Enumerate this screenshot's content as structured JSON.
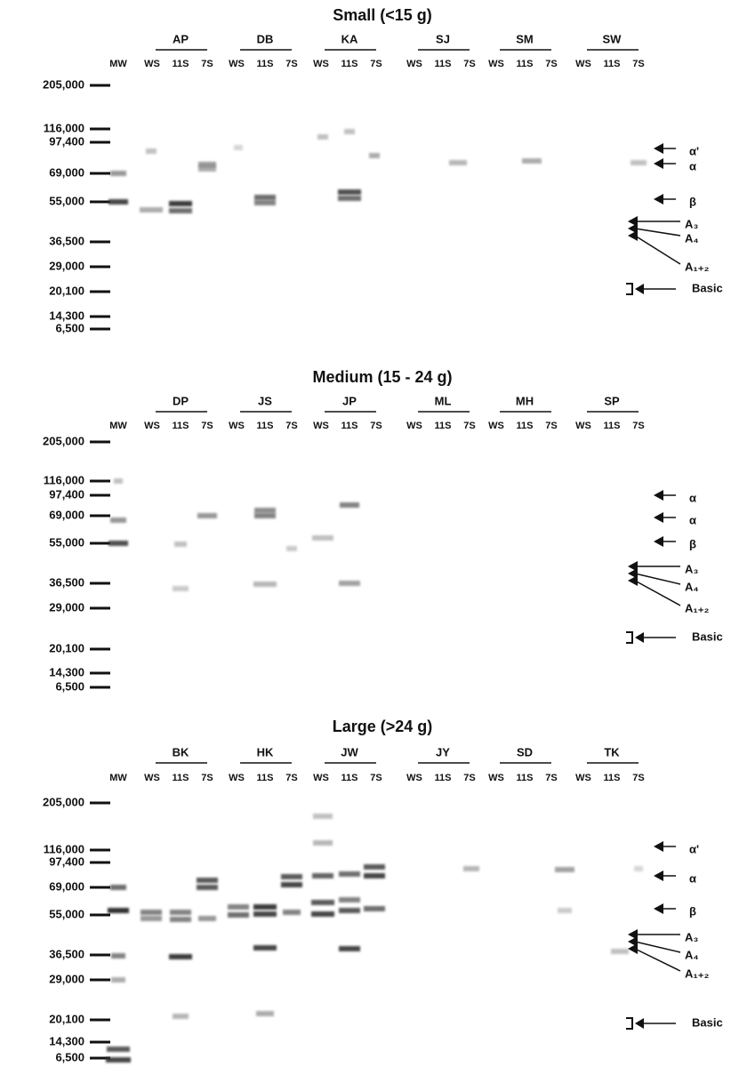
{
  "panels": [
    {
      "title": "Small (<15 g)",
      "mw": "MW",
      "groups": [
        {
          "name": "AP",
          "lanes": [
            "WS",
            "11S",
            "7S"
          ]
        },
        {
          "name": "DB",
          "lanes": [
            "WS",
            "11S",
            "7S"
          ]
        },
        {
          "name": "KA",
          "lanes": [
            "WS",
            "11S",
            "7S"
          ]
        },
        {
          "name": "SJ",
          "lanes": [
            "WS",
            "11S",
            "7S"
          ]
        },
        {
          "name": "SM",
          "lanes": [
            "WS",
            "11S",
            "7S"
          ]
        },
        {
          "name": "SW",
          "lanes": [
            "WS",
            "11S",
            "7S"
          ]
        }
      ],
      "markers": [
        "205,000",
        "116,000",
        "97,400",
        "69,000",
        "55,000",
        "36,500",
        "29,000",
        "20,100",
        "14,300",
        "6,500"
      ],
      "annotations": [
        "α'",
        "α",
        "β",
        "A₃",
        "A₄",
        "A₁₊₂",
        "Basic"
      ]
    },
    {
      "title": "Medium (15 - 24 g)",
      "mw": "MW",
      "groups": [
        {
          "name": "DP",
          "lanes": [
            "WS",
            "11S",
            "7S"
          ]
        },
        {
          "name": "JS",
          "lanes": [
            "WS",
            "11S",
            "7S"
          ]
        },
        {
          "name": "JP",
          "lanes": [
            "WS",
            "11S",
            "7S"
          ]
        },
        {
          "name": "ML",
          "lanes": [
            "WS",
            "11S",
            "7S"
          ]
        },
        {
          "name": "MH",
          "lanes": [
            "WS",
            "11S",
            "7S"
          ]
        },
        {
          "name": "SP",
          "lanes": [
            "WS",
            "11S",
            "7S"
          ]
        }
      ],
      "markers": [
        "205,000",
        "116,000",
        "97,400",
        "69,000",
        "55,000",
        "36,500",
        "29,000",
        "20,100",
        "14,300",
        "6,500"
      ],
      "annotations": [
        "α",
        "α",
        "β",
        "A₃",
        "A₄",
        "A₁₊₂",
        "Basic"
      ]
    },
    {
      "title": "Large (>24 g)",
      "mw": "MW",
      "groups": [
        {
          "name": "BK",
          "lanes": [
            "WS",
            "11S",
            "7S"
          ]
        },
        {
          "name": "HK",
          "lanes": [
            "WS",
            "11S",
            "7S"
          ]
        },
        {
          "name": "JW",
          "lanes": [
            "WS",
            "11S",
            "7S"
          ]
        },
        {
          "name": "JY",
          "lanes": [
            "WS",
            "11S",
            "7S"
          ]
        },
        {
          "name": "SD",
          "lanes": [
            "WS",
            "11S",
            "7S"
          ]
        },
        {
          "name": "TK",
          "lanes": [
            "WS",
            "11S",
            "7S"
          ]
        }
      ],
      "markers": [
        "205,000",
        "116,000",
        "97,400",
        "69,000",
        "55,000",
        "36,500",
        "29,000",
        "20,100",
        "14,300",
        "6,500"
      ],
      "annotations": [
        "α'",
        "α",
        "β",
        "A₃",
        "A₄",
        "A₁₊₂",
        "Basic"
      ]
    }
  ]
}
